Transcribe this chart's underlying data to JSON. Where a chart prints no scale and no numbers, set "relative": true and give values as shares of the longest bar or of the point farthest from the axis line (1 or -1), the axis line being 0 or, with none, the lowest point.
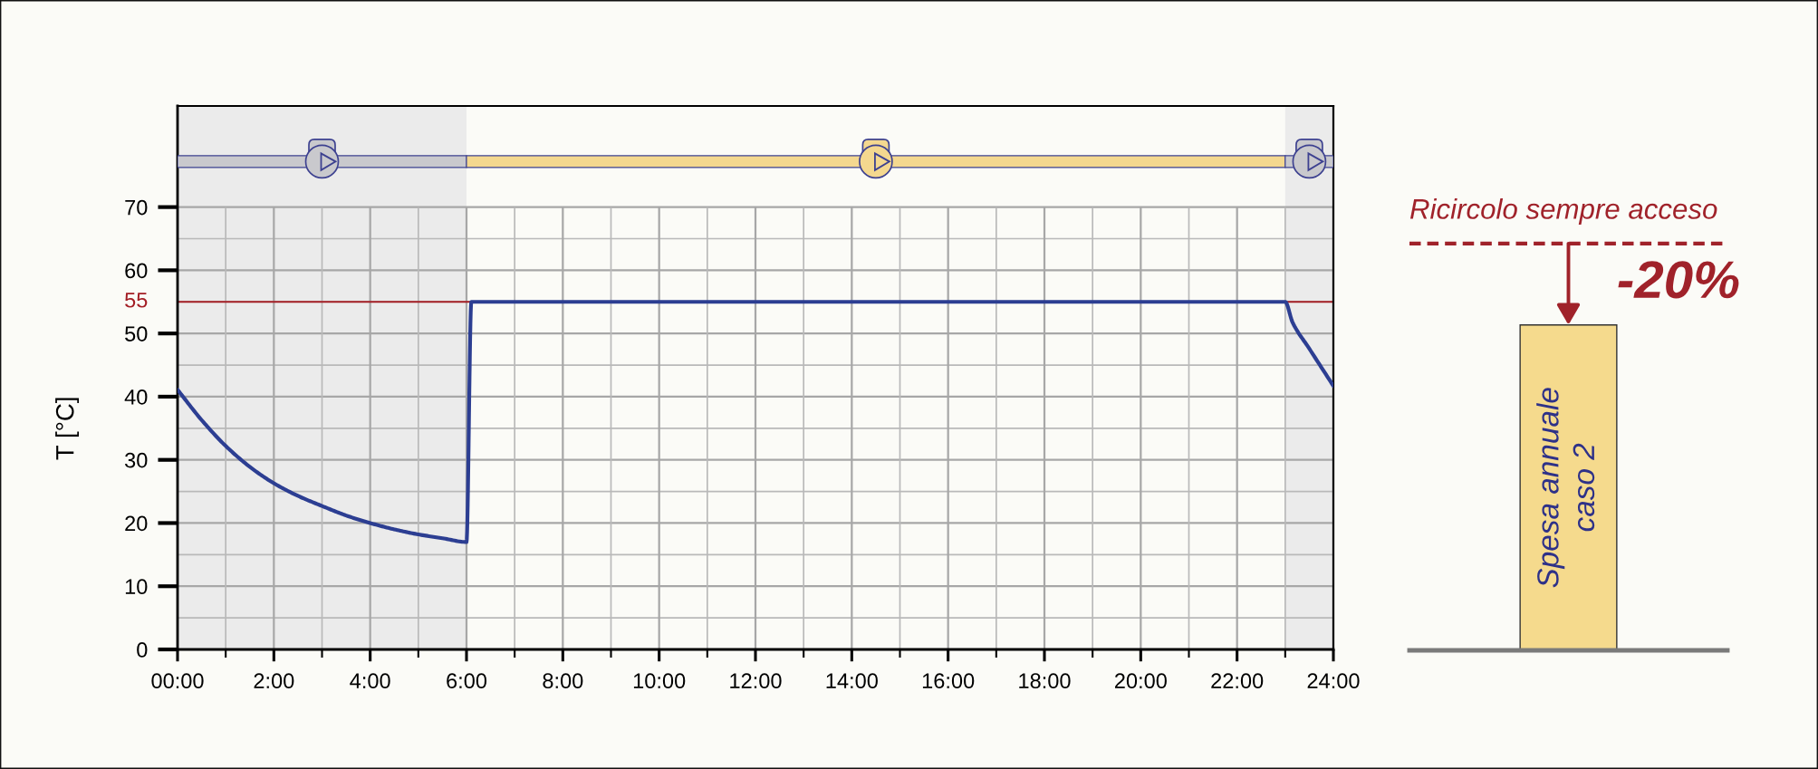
{
  "chart_data": [
    {
      "type": "line",
      "ylabel": "T [°C]",
      "x": [
        0,
        0.5,
        1,
        1.5,
        2,
        2.5,
        3,
        3.5,
        4,
        4.5,
        5,
        5.5,
        6,
        6.1,
        23,
        23.15,
        23.5,
        24
      ],
      "series": [
        {
          "color": "#2c3e92",
          "values": [
            41.1,
            36.3,
            32.2,
            28.9,
            26.3,
            24.3,
            22.7,
            21.2,
            20.0,
            19.0,
            18.2,
            17.6,
            17.0,
            55,
            55,
            51.8,
            47.6,
            41.7
          ]
        }
      ],
      "xlim": [
        0,
        24
      ],
      "xticks": [
        {
          "value": 0,
          "label": "00:00"
        },
        {
          "value": 1,
          "label": null
        },
        {
          "value": 2,
          "label": "2:00"
        },
        {
          "value": 3,
          "label": null
        },
        {
          "value": 4,
          "label": "4:00"
        },
        {
          "value": 5,
          "label": null
        },
        {
          "value": 6,
          "label": "6:00"
        },
        {
          "value": 7,
          "label": null
        },
        {
          "value": 8,
          "label": "8:00"
        },
        {
          "value": 9,
          "label": null
        },
        {
          "value": 10,
          "label": "10:00"
        },
        {
          "value": 11,
          "label": null
        },
        {
          "value": 12,
          "label": "12:00"
        },
        {
          "value": 13,
          "label": null
        },
        {
          "value": 14,
          "label": "14:00"
        },
        {
          "value": 15,
          "label": null
        },
        {
          "value": 16,
          "label": "16:00"
        },
        {
          "value": 17,
          "label": null
        },
        {
          "value": 18,
          "label": "18:00"
        },
        {
          "value": 19,
          "label": null
        },
        {
          "value": 20,
          "label": "20:00"
        },
        {
          "value": 21,
          "label": null
        },
        {
          "value": 22,
          "label": "22:00"
        },
        {
          "value": 23,
          "label": null
        },
        {
          "value": 24,
          "label": "24:00"
        }
      ],
      "ylim": [
        0,
        86
      ],
      "yticks": [
        0,
        {
          "value": 5,
          "label": null
        },
        10,
        {
          "value": 15,
          "label": null
        },
        20,
        {
          "value": 25,
          "label": null
        },
        30,
        {
          "value": 35,
          "label": null
        },
        40,
        {
          "value": 45,
          "label": null
        },
        50,
        {
          "value": 55,
          "label": null
        },
        60,
        {
          "value": 65,
          "label": null
        },
        70
      ],
      "grid": true,
      "ref_lines": [
        {
          "axis": "y",
          "value": 55,
          "label": "55",
          "color": "#a31e25"
        }
      ],
      "bands": [
        {
          "axis": "x",
          "from": 0,
          "to": 6,
          "color": "#ebebeb"
        },
        {
          "axis": "x",
          "from": 23,
          "to": 24,
          "color": "#ebebeb"
        }
      ]
    },
    {
      "type": "bar",
      "categories": [
        "Spesa annuale\ncaso 2"
      ],
      "values": [
        1
      ],
      "relative": true,
      "color": "#f5da8d",
      "ref_lines": [
        {
          "axis": "y",
          "value": 1.25,
          "label": "Ricircolo sempre acceso",
          "color": "#a0222a",
          "line_style": "dashed"
        }
      ],
      "annotations": [
        "-20%"
      ]
    }
  ]
}
